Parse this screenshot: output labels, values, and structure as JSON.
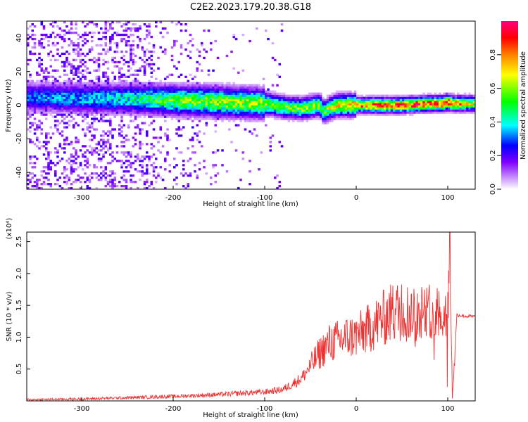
{
  "title": "C2E2.2023.179.20.38.G18",
  "chart_data": [
    {
      "type": "heatmap",
      "xlabel": "Height of straight line (km)",
      "ylabel": "Frequency (Hz)",
      "xlim": [
        -360,
        130
      ],
      "ylim": [
        -50,
        50
      ],
      "xticks": [
        -300,
        -200,
        -100,
        0,
        100
      ],
      "yticks": [
        -40,
        -20,
        0,
        20,
        40
      ],
      "colorbar": {
        "label": "Normalized spectral amplitude",
        "range": [
          0.0,
          1.0
        ],
        "ticks": [
          0.0,
          0.2,
          0.4,
          0.6,
          0.8
        ],
        "colormap": [
          "#ffffff",
          "#8000ff",
          "#0000ff",
          "#00ffff",
          "#00ff00",
          "#ffff00",
          "#ff8000",
          "#ff0000",
          "#ff0080"
        ]
      },
      "ridge": {
        "height_km": [
          -360,
          -300,
          -250,
          -200,
          -150,
          -100,
          -80,
          -60,
          -40,
          -35,
          -30,
          -20,
          0,
          20,
          50,
          80,
          95,
          100,
          105,
          130
        ],
        "center_freq_hz": [
          5,
          4,
          4,
          3,
          2,
          1,
          -1,
          -2,
          0,
          -4,
          -2,
          0,
          0,
          0,
          0,
          1,
          1,
          2,
          1,
          1
        ],
        "peak_amplitude": [
          0.3,
          0.35,
          0.4,
          0.55,
          0.6,
          0.6,
          0.55,
          0.55,
          0.6,
          0.5,
          0.6,
          0.7,
          0.75,
          0.8,
          0.85,
          0.85,
          0.85,
          0.9,
          0.8,
          0.6
        ]
      }
    },
    {
      "type": "line",
      "xlabel": "Height of straight line (km)",
      "ylabel": "SNR (10 * v/v)",
      "y_multiplier": "(x10⁴)",
      "xlim": [
        -360,
        130
      ],
      "ylim": [
        0,
        2.65
      ],
      "xticks": [
        -300,
        -200,
        -100,
        0,
        100
      ],
      "yticks": [
        0.5,
        1.0,
        1.5,
        2.0,
        2.5
      ],
      "series": [
        {
          "color": "#ee3333",
          "x": [
            -360,
            -300,
            -250,
            -200,
            -150,
            -100,
            -80,
            -60,
            -50,
            -40,
            -30,
            -20,
            -10,
            0,
            10,
            20,
            30,
            40,
            50,
            60,
            70,
            80,
            90,
            95,
            100,
            102,
            105,
            110,
            120,
            130
          ],
          "y": [
            0.02,
            0.03,
            0.05,
            0.07,
            0.1,
            0.14,
            0.18,
            0.35,
            0.55,
            0.75,
            0.9,
            0.95,
            1.0,
            1.02,
            1.1,
            1.2,
            1.3,
            1.4,
            1.4,
            1.38,
            1.4,
            1.38,
            1.42,
            1.4,
            1.45,
            2.65,
            0.05,
            1.35,
            1.33,
            1.32
          ]
        }
      ]
    }
  ]
}
